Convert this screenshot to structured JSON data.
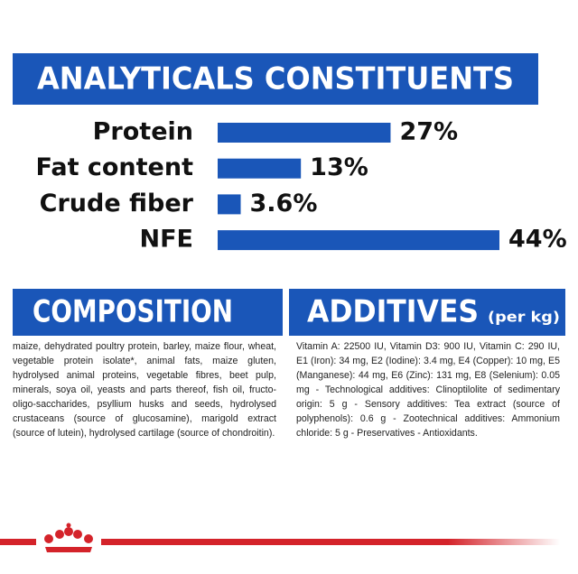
{
  "chart_data": {
    "type": "bar",
    "orientation": "horizontal",
    "title": "ANALYTICALS CONSTITUENTS",
    "categories": [
      "Protein",
      "Fat content",
      "Crude fiber",
      "NFE"
    ],
    "values": [
      27,
      13,
      3.6,
      44
    ],
    "value_labels": [
      "27%",
      "13%",
      "3.6%",
      "44%"
    ],
    "color": "#1a56b8",
    "xlim": [
      0,
      44
    ]
  },
  "composition": {
    "title": "COMPOSITION",
    "text": "maize, dehydrated poultry protein, barley, maize flour, wheat, vegetable protein isolate*, animal fats, maize gluten, hydrolysed animal proteins, vegetable fibres, beet pulp, minerals, soya oil, yeasts and parts thereof, fish oil, fructo-oligo-saccharides, psyllium husks and seeds, hydrolysed crustaceans (source of glucosamine), marigold extract (source of lutein), hydrolysed cartilage (source of chondroitin)."
  },
  "additives": {
    "title": "ADDITIVES",
    "unit": "(per kg)",
    "text": "Vitamin A: 22500 IU, Vitamin D3: 900 IU, Vitamin C: 290 IU, E1 (Iron): 34 mg, E2 (Iodine): 3.4 mg, E4 (Copper): 10 mg, E5 (Manganese): 44 mg, E6 (Zinc): 131 mg, E8 (Selenium): 0.05 mg - Technological additives: Clinoptilolite of sedimentary origin: 5 g - Sensory additives: Tea extract (source of polyphenols): 0.6 g - Zootechnical additives: Ammonium chloride: 5 g - Preservatives - Antioxidants."
  }
}
